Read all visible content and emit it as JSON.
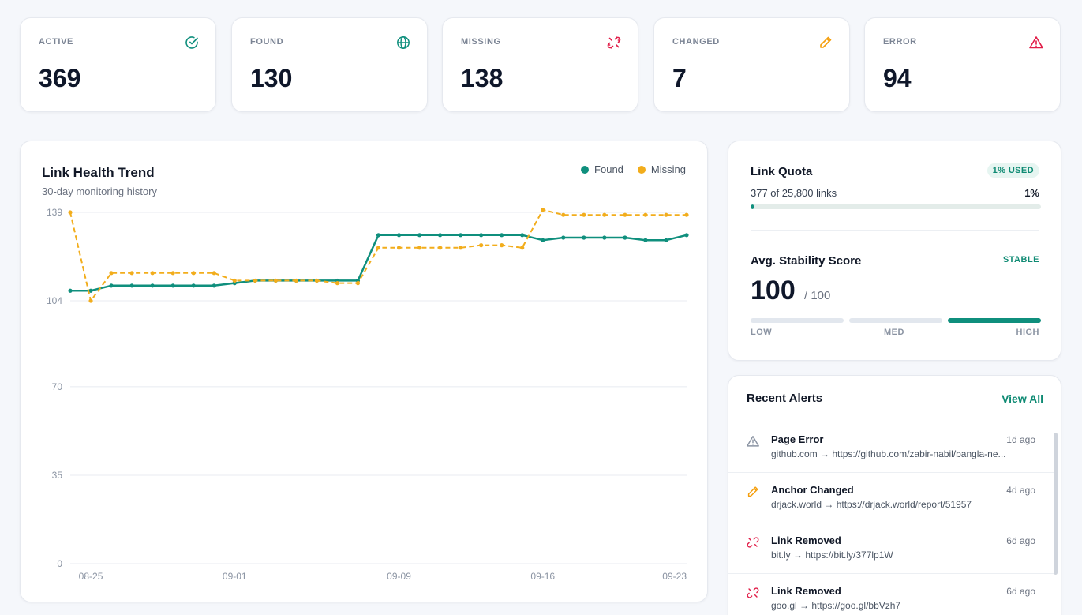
{
  "stats": [
    {
      "label": "ACTIVE",
      "value": "369",
      "icon": "check-circle-icon",
      "color": "#0f8f7d"
    },
    {
      "label": "FOUND",
      "value": "130",
      "icon": "globe-icon",
      "color": "#0f8f7d"
    },
    {
      "label": "MISSING",
      "value": "138",
      "icon": "broken-link-icon",
      "color": "#e11d48"
    },
    {
      "label": "CHANGED",
      "value": "7",
      "icon": "pencil-icon",
      "color": "#f59e0b"
    },
    {
      "label": "ERROR",
      "value": "94",
      "icon": "warning-triangle-icon",
      "color": "#e11d48"
    }
  ],
  "trend": {
    "title": "Link Health Trend",
    "subtitle": "30-day monitoring history",
    "legend": [
      {
        "label": "Found",
        "color": "#0f8f7d"
      },
      {
        "label": "Missing",
        "color": "#f2ad1c"
      }
    ]
  },
  "chart_data": {
    "type": "line",
    "x": [
      "08-24",
      "08-25",
      "08-26",
      "08-27",
      "08-28",
      "08-29",
      "08-30",
      "08-31",
      "09-01",
      "09-02",
      "09-03",
      "09-04",
      "09-05",
      "09-06",
      "09-07",
      "09-08",
      "09-09",
      "09-10",
      "09-11",
      "09-12",
      "09-13",
      "09-14",
      "09-15",
      "09-16",
      "09-17",
      "09-18",
      "09-19",
      "09-20",
      "09-21",
      "09-22",
      "09-23"
    ],
    "tick_labels": [
      "08-25",
      "09-01",
      "09-09",
      "09-16",
      "09-23"
    ],
    "y_ticks": [
      0,
      35,
      70,
      104,
      139
    ],
    "ylim": [
      0,
      139
    ],
    "grid": true,
    "legend_position": "top-right",
    "series": [
      {
        "name": "Found",
        "color": "#0f8f7d",
        "values": [
          108,
          108,
          110,
          110,
          110,
          110,
          110,
          110,
          111,
          112,
          112,
          112,
          112,
          112,
          112,
          130,
          130,
          130,
          130,
          130,
          130,
          130,
          130,
          128,
          129,
          129,
          129,
          129,
          128,
          128,
          130
        ]
      },
      {
        "name": "Missing",
        "color": "#f2ad1c",
        "values": [
          139,
          104,
          115,
          115,
          115,
          115,
          115,
          115,
          112,
          112,
          112,
          112,
          112,
          111,
          111,
          125,
          125,
          125,
          125,
          125,
          126,
          126,
          125,
          140,
          138,
          138,
          138,
          138,
          138,
          138,
          138
        ]
      }
    ]
  },
  "quota": {
    "title": "Link Quota",
    "badge": "1% USED",
    "count_text": "377 of 25,800 links",
    "percent_text": "1%",
    "fill_percent": 1
  },
  "stability": {
    "title": "Avg. Stability Score",
    "badge": "STABLE",
    "value": "100",
    "out_of": "/ 100",
    "levels": [
      "LOW",
      "MED",
      "HIGH"
    ],
    "active_level": "HIGH"
  },
  "alerts": {
    "title": "Recent Alerts",
    "view_all": "View All",
    "items": [
      {
        "icon": "warning-triangle-icon",
        "title": "Page Error",
        "time": "1d ago",
        "desc": "github.com → https://github.com/zabir-nabil/bangla-ne..."
      },
      {
        "icon": "pencil-icon",
        "title": "Anchor Changed",
        "time": "4d ago",
        "desc": "drjack.world → https://drjack.world/report/51957"
      },
      {
        "icon": "broken-link-icon",
        "title": "Link Removed",
        "time": "6d ago",
        "desc": "bit.ly → https://bit.ly/377lp1W"
      },
      {
        "icon": "broken-link-icon",
        "title": "Link Removed",
        "time": "6d ago",
        "desc": "goo.gl → https://goo.gl/bbVzh7"
      }
    ]
  }
}
